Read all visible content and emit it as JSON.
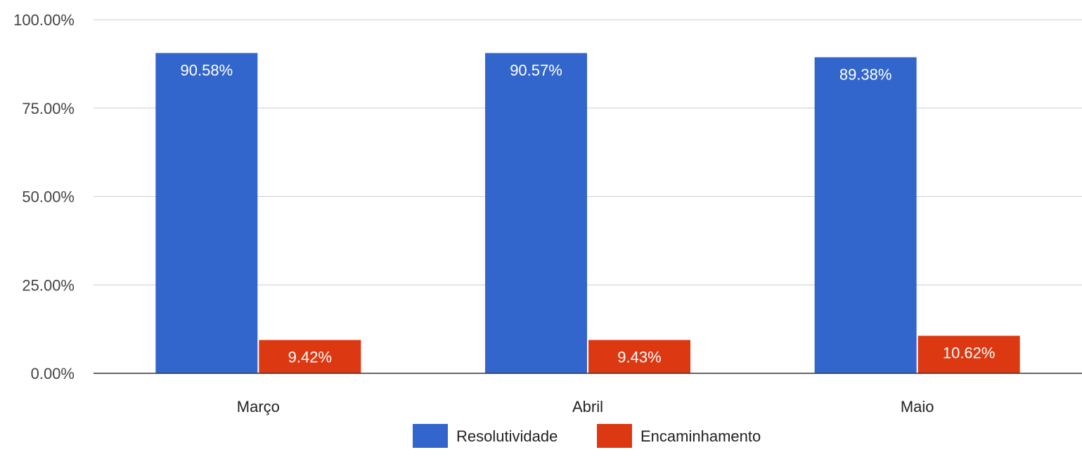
{
  "chart_data": {
    "type": "bar",
    "categories": [
      "Março",
      "Abril",
      "Maio"
    ],
    "series": [
      {
        "name": "Resolutividade",
        "values": [
          90.58,
          90.57,
          89.38
        ],
        "labels": [
          "90.58%",
          "90.57%",
          "89.38%"
        ],
        "color": "#3366cc"
      },
      {
        "name": "Encaminhamento",
        "values": [
          9.42,
          9.43,
          10.62
        ],
        "labels": [
          "9.42%",
          "9.43%",
          "10.62%"
        ],
        "color": "#dc3912"
      }
    ],
    "y_ticks": [
      0,
      25,
      50,
      75,
      100
    ],
    "y_tick_labels": [
      "0.00%",
      "25.00%",
      "50.00%",
      "75.00%",
      "100.00%"
    ],
    "ylim": [
      0,
      100
    ],
    "grid": true,
    "legend_position": "bottom"
  }
}
